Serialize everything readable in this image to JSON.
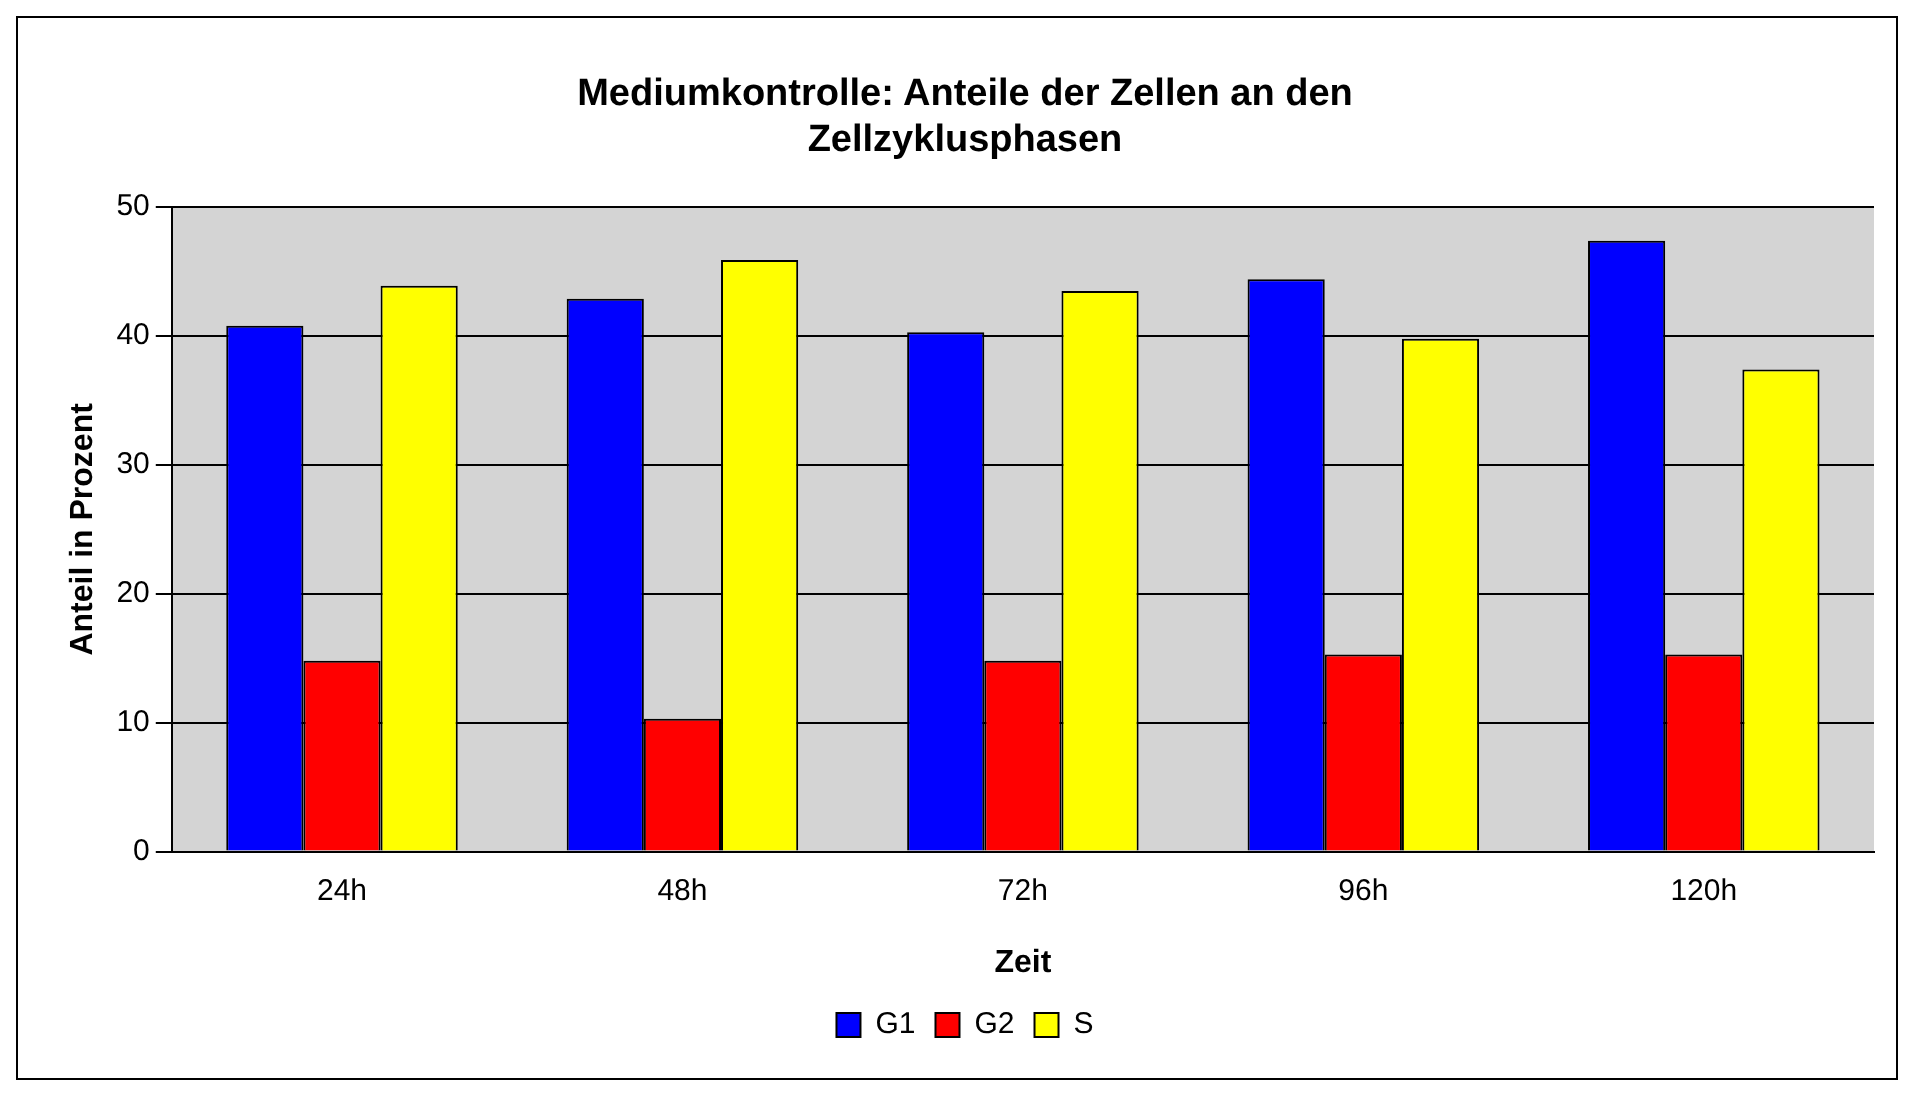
{
  "chart_data": {
    "type": "bar",
    "title": "Mediumkontrolle: Anteile der Zellen an den Zellzyklusphasen",
    "xlabel": "Zeit",
    "ylabel": "Anteil in Prozent",
    "categories": [
      "24h",
      "48h",
      "72h",
      "96h",
      "120h"
    ],
    "series": [
      {
        "name": "G1",
        "color": "#0000ff",
        "values": [
          40.8,
          42.9,
          40.3,
          44.4,
          47.4
        ]
      },
      {
        "name": "G2",
        "color": "#ff0000",
        "values": [
          14.8,
          10.3,
          14.8,
          15.3,
          15.3
        ]
      },
      {
        "name": "S",
        "color": "#ffff00",
        "values": [
          43.9,
          45.9,
          43.5,
          39.8,
          37.4
        ]
      }
    ],
    "ylim": [
      0,
      50
    ],
    "yticks": [
      0,
      10,
      20,
      30,
      40,
      50
    ],
    "grid": "y",
    "legend": "bottom"
  }
}
